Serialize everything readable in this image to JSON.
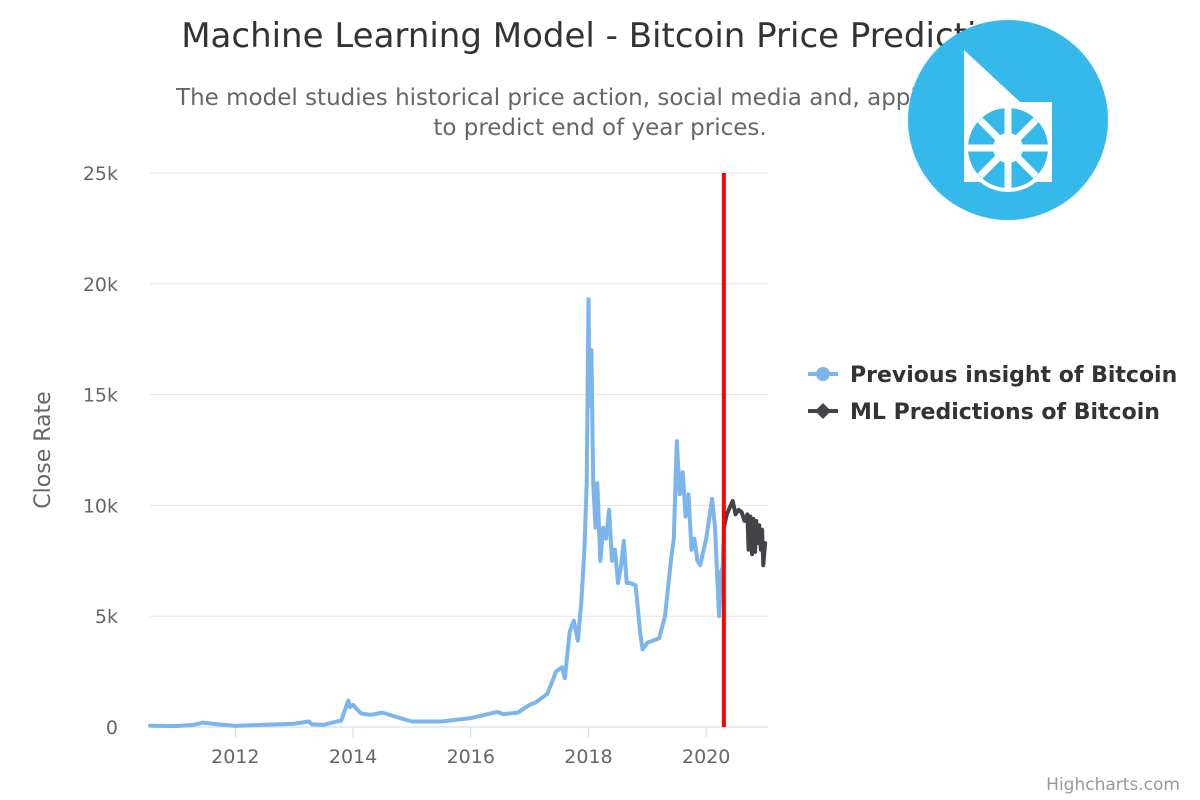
{
  "chart_data": {
    "type": "line",
    "title": "Machine Learning Model - Bitcoin Price Prediction",
    "subtitle_lines": [
      "The model studies historical price action, social media and, applies LSTM",
      "to predict end of year prices."
    ],
    "ylabel": "Close Rate",
    "xlabel": "",
    "ylim": [
      0,
      25000
    ],
    "xlim": [
      2010.55,
      2021.05
    ],
    "y_ticks": [
      0,
      5000,
      10000,
      15000,
      20000,
      25000
    ],
    "y_tick_labels": [
      "0",
      "5k",
      "10k",
      "15k",
      "20k",
      "25k"
    ],
    "x_ticks": [
      2012,
      2014,
      2016,
      2018,
      2020
    ],
    "x_tick_labels": [
      "2012",
      "2014",
      "2016",
      "2018",
      "2020"
    ],
    "grid": true,
    "legend_position": "right",
    "plot_line_x": 2020.3,
    "series": [
      {
        "name": "Previous insight of Bitcoin",
        "color": "#7cb5ec",
        "marker": "circle",
        "x": [
          2010.55,
          2011.0,
          2011.3,
          2011.45,
          2011.7,
          2012.0,
          2012.5,
          2013.0,
          2013.25,
          2013.3,
          2013.5,
          2013.8,
          2013.92,
          2013.95,
          2014.0,
          2014.1,
          2014.15,
          2014.3,
          2014.5,
          2014.8,
          2015.0,
          2015.5,
          2016.0,
          2016.45,
          2016.55,
          2016.8,
          2017.0,
          2017.1,
          2017.2,
          2017.3,
          2017.45,
          2017.55,
          2017.6,
          2017.68,
          2017.75,
          2017.82,
          2017.88,
          2017.93,
          2017.97,
          2018.0,
          2018.02,
          2018.05,
          2018.08,
          2018.12,
          2018.15,
          2018.2,
          2018.25,
          2018.3,
          2018.35,
          2018.4,
          2018.45,
          2018.5,
          2018.55,
          2018.6,
          2018.65,
          2018.7,
          2018.8,
          2018.88,
          2018.92,
          2019.0,
          2019.2,
          2019.3,
          2019.4,
          2019.45,
          2019.5,
          2019.55,
          2019.6,
          2019.65,
          2019.7,
          2019.75,
          2019.8,
          2019.85,
          2019.9,
          2020.0,
          2020.1,
          2020.15,
          2020.2,
          2020.22,
          2020.25,
          2020.28,
          2020.3
        ],
        "y": [
          60,
          40,
          100,
          200,
          120,
          50,
          100,
          150,
          250,
          120,
          100,
          300,
          1200,
          900,
          1000,
          700,
          600,
          550,
          650,
          400,
          250,
          250,
          400,
          680,
          580,
          650,
          1000,
          1100,
          1300,
          1500,
          2500,
          2700,
          2200,
          4300,
          4800,
          3900,
          5700,
          8000,
          11000,
          19300,
          14500,
          17000,
          11000,
          9000,
          11000,
          7500,
          9000,
          8500,
          9800,
          7500,
          8000,
          6500,
          7200,
          8400,
          6500,
          6500,
          6400,
          4200,
          3500,
          3800,
          4000,
          5000,
          7500,
          8500,
          12900,
          10500,
          11500,
          9500,
          10500,
          8000,
          8500,
          7500,
          7300,
          8500,
          10300,
          9000,
          6000,
          5000,
          7000,
          7200,
          9000
        ]
      },
      {
        "name": "ML Predictions of Bitcoin",
        "color": "#434348",
        "marker": "diamond",
        "x": [
          2020.3,
          2020.35,
          2020.4,
          2020.45,
          2020.5,
          2020.55,
          2020.6,
          2020.65,
          2020.7,
          2020.72,
          2020.75,
          2020.78,
          2020.8,
          2020.83,
          2020.85,
          2020.88,
          2020.9,
          2020.93,
          2020.95,
          2020.97,
          2021.0
        ],
        "y": [
          9000,
          9600,
          9900,
          10200,
          9600,
          9800,
          9700,
          9300,
          9600,
          8000,
          9500,
          7800,
          9400,
          7900,
          9300,
          8300,
          9100,
          8000,
          8900,
          7300,
          8300
        ]
      }
    ]
  },
  "credits": "Highcharts.com"
}
